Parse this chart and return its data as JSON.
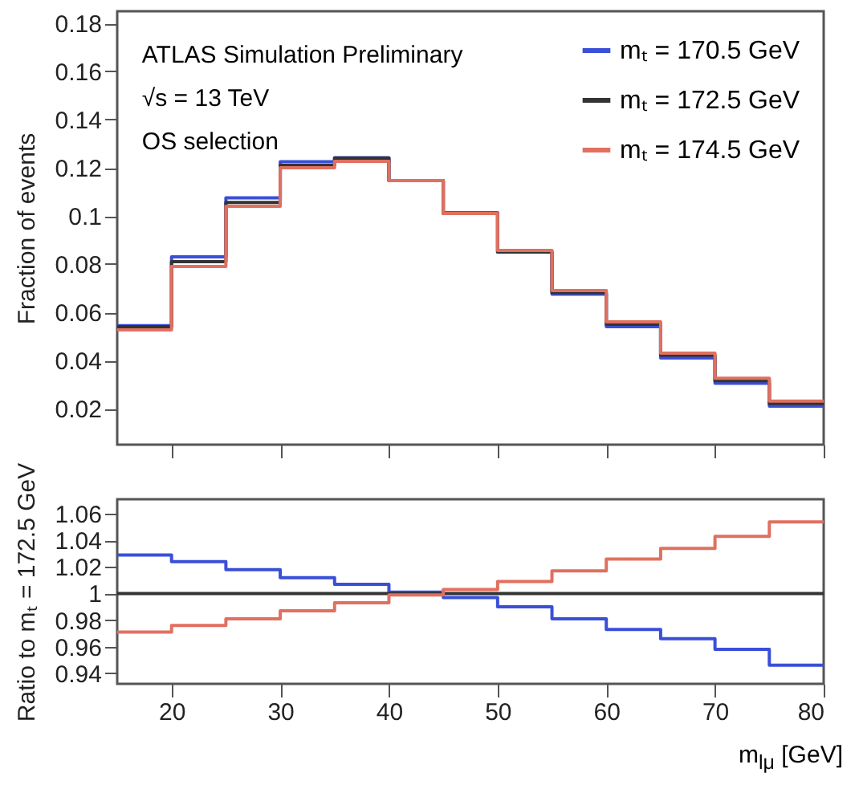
{
  "chart_data": [
    {
      "type": "histogram",
      "ylabel": "Fraction of events",
      "legend": "top right",
      "tick_labels": "y",
      "annotations": [
        "ATLAS Simulation Preliminary",
        "√s = 13 TeV",
        "OS selection"
      ],
      "bins": [
        15,
        20,
        25,
        30,
        35,
        40,
        45,
        50,
        55,
        60,
        65,
        70,
        75,
        80
      ],
      "xlim": [
        15,
        80
      ],
      "xticks": [
        20,
        30,
        40,
        50,
        60,
        70,
        80
      ],
      "ylim": [
        0.005,
        0.185
      ],
      "yticks": [
        0.02,
        0.04,
        0.06,
        0.08,
        0.1,
        0.12,
        0.14,
        0.16,
        0.18
      ],
      "series": [
        {
          "name": "mₜ = 170.5 GeV",
          "color": "#3a4fd8",
          "values": [
            0.0544,
            0.083,
            0.1075,
            0.1225,
            0.1242,
            0.1147,
            0.1013,
            0.085,
            0.0675,
            0.054,
            0.041,
            0.0305,
            0.021
          ]
        },
        {
          "name": "mₜ = 172.5 GeV",
          "color": "#333333",
          "values": [
            0.054,
            0.081,
            0.1056,
            0.121,
            0.124,
            0.1147,
            0.101,
            0.085,
            0.0682,
            0.055,
            0.0422,
            0.0316,
            0.0221
          ]
        },
        {
          "name": "mₜ = 174.5 GeV",
          "color": "#e07060",
          "values": [
            0.0527,
            0.079,
            0.104,
            0.12,
            0.1227,
            0.1147,
            0.101,
            0.0857,
            0.069,
            0.056,
            0.043,
            0.0326,
            0.0231
          ]
        }
      ]
    },
    {
      "type": "histogram",
      "ylabel": "Ratio to mₜ = 172.5 GeV",
      "xlabel": "m$_{lμ}$ [GeV]",
      "bins": [
        15,
        20,
        25,
        30,
        35,
        40,
        45,
        50,
        55,
        60,
        65,
        70,
        75,
        80
      ],
      "xlim": [
        15,
        80
      ],
      "xticks": [
        20,
        30,
        40,
        50,
        60,
        70,
        80
      ],
      "ylim": [
        0.932,
        1.071
      ],
      "yticks": [
        0.94,
        0.96,
        0.98,
        1,
        1.02,
        1.04,
        1.06
      ],
      "series": [
        {
          "color": "#3a4fd8",
          "values": [
            1.029,
            1.024,
            1.018,
            1.012,
            1.007,
            1.001,
            0.997,
            0.99,
            0.981,
            0.973,
            0.966,
            0.958,
            0.946
          ]
        },
        {
          "color": "#333333",
          "values": [
            1,
            1,
            1,
            1,
            1,
            1,
            1,
            1,
            1,
            1,
            1,
            1,
            1
          ]
        },
        {
          "color": "#e07060",
          "values": [
            0.971,
            0.976,
            0.981,
            0.987,
            0.993,
            0.999,
            1.003,
            1.009,
            1.017,
            1.026,
            1.034,
            1.043,
            1.054
          ]
        }
      ]
    }
  ]
}
